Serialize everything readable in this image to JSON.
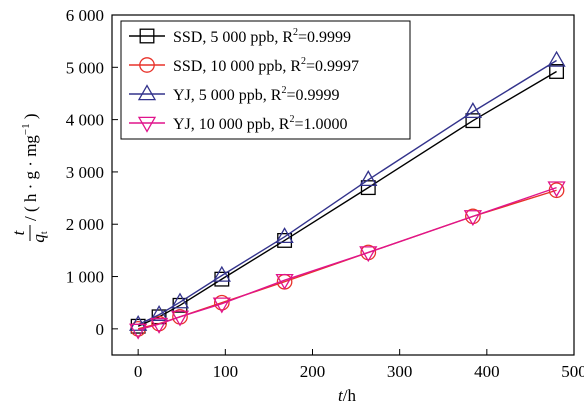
{
  "chart_data": {
    "type": "line",
    "title": "",
    "xlabel": {
      "var": "t",
      "unit": "/h"
    },
    "ylabel": {
      "num": "t",
      "den": "q",
      "sub": "t",
      "unit_prefix": "/ ( h · g · mg",
      "unit_sup": "−1",
      "unit_suffix": " )"
    },
    "xlim": [
      -30,
      500
    ],
    "ylim": [
      -500,
      6000
    ],
    "xticks": [
      0,
      100,
      200,
      300,
      400,
      500
    ],
    "xtick_labels": [
      "0",
      "100",
      "200",
      "300",
      "400",
      "500"
    ],
    "yticks": [
      0,
      1000,
      2000,
      3000,
      4000,
      5000,
      6000
    ],
    "ytick_labels": [
      "0",
      "1 000",
      "2 000",
      "3 000",
      "4 000",
      "5 000",
      "6 000"
    ],
    "grid": false,
    "legend_position": "top-left",
    "x": [
      0,
      24,
      48,
      96,
      168,
      264,
      384,
      480
    ],
    "series": [
      {
        "name": "SSD, 5 000 ppb, R",
        "r2": "0.9999",
        "marker": "square",
        "color": "#000000",
        "values": [
          50,
          230,
          450,
          950,
          1690,
          2700,
          3980,
          4920
        ]
      },
      {
        "name": "SSD, 10 000 ppb, R",
        "r2": "0.9997",
        "marker": "circle",
        "color": "#e8322a",
        "values": [
          0,
          100,
          230,
          500,
          900,
          1460,
          2150,
          2650
        ]
      },
      {
        "name": "YJ, 5 000 ppb, R",
        "r2": "0.9999",
        "marker": "triangle-up",
        "color": "#33338c",
        "values": [
          80,
          270,
          510,
          1020,
          1760,
          2850,
          4150,
          5130
        ]
      },
      {
        "name": "YJ, 10 000 ppb, R",
        "r2": "1.0000",
        "marker": "triangle-down",
        "color": "#e0148c",
        "values": [
          -20,
          90,
          230,
          480,
          930,
          1460,
          2150,
          2700
        ]
      }
    ]
  }
}
